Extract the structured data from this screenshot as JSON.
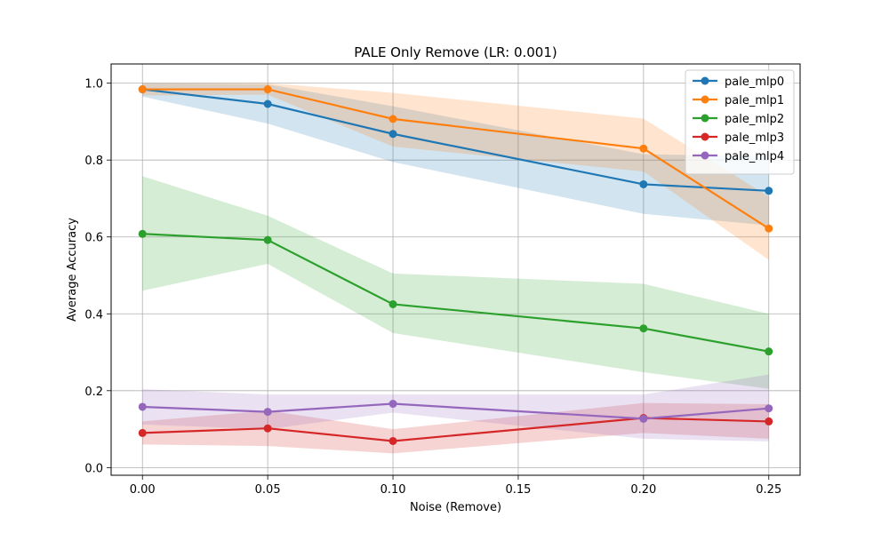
{
  "chart_data": {
    "type": "line",
    "title": "PALE Only Remove (LR: 0.001)",
    "xlabel": "Noise (Remove)",
    "ylabel": "Average Accuracy",
    "x": [
      0.0,
      0.05,
      0.1,
      0.2,
      0.25
    ],
    "xticks": [
      "0.00",
      "0.05",
      "0.10",
      "0.15",
      "0.20",
      "0.25"
    ],
    "yticks": [
      "0.0",
      "0.2",
      "0.4",
      "0.6",
      "0.8",
      "1.0"
    ],
    "xlim": [
      -0.0125,
      0.2625
    ],
    "ylim": [
      -0.02,
      1.05
    ],
    "grid": true,
    "legend_position": "top-right",
    "series": [
      {
        "name": "pale_mlp0",
        "color": "#1f77b4",
        "values": [
          0.984,
          0.946,
          0.868,
          0.737,
          0.72
        ],
        "lower": [
          0.965,
          0.895,
          0.795,
          0.66,
          0.63
        ],
        "upper": [
          1.0,
          0.997,
          0.94,
          0.815,
          0.81
        ]
      },
      {
        "name": "pale_mlp1",
        "color": "#ff7f0e",
        "values": [
          0.984,
          0.984,
          0.907,
          0.83,
          0.622
        ],
        "lower": [
          0.968,
          0.97,
          0.835,
          0.77,
          0.54
        ],
        "upper": [
          1.0,
          1.0,
          0.975,
          0.908,
          0.705
        ]
      },
      {
        "name": "pale_mlp2",
        "color": "#2ca02c",
        "values": [
          0.608,
          0.592,
          0.425,
          0.362,
          0.302
        ],
        "lower": [
          0.46,
          0.53,
          0.35,
          0.248,
          0.205
        ],
        "upper": [
          0.758,
          0.655,
          0.505,
          0.478,
          0.4
        ]
      },
      {
        "name": "pale_mlp3",
        "color": "#d62728",
        "values": [
          0.09,
          0.102,
          0.069,
          0.129,
          0.12
        ],
        "lower": [
          0.06,
          0.056,
          0.037,
          0.09,
          0.075
        ],
        "upper": [
          0.12,
          0.148,
          0.1,
          0.168,
          0.165
        ]
      },
      {
        "name": "pale_mlp4",
        "color": "#9467bd",
        "values": [
          0.158,
          0.145,
          0.166,
          0.127,
          0.154
        ],
        "lower": [
          0.112,
          0.1,
          0.143,
          0.075,
          0.068
        ],
        "upper": [
          0.204,
          0.19,
          0.19,
          0.19,
          0.242
        ]
      }
    ]
  }
}
